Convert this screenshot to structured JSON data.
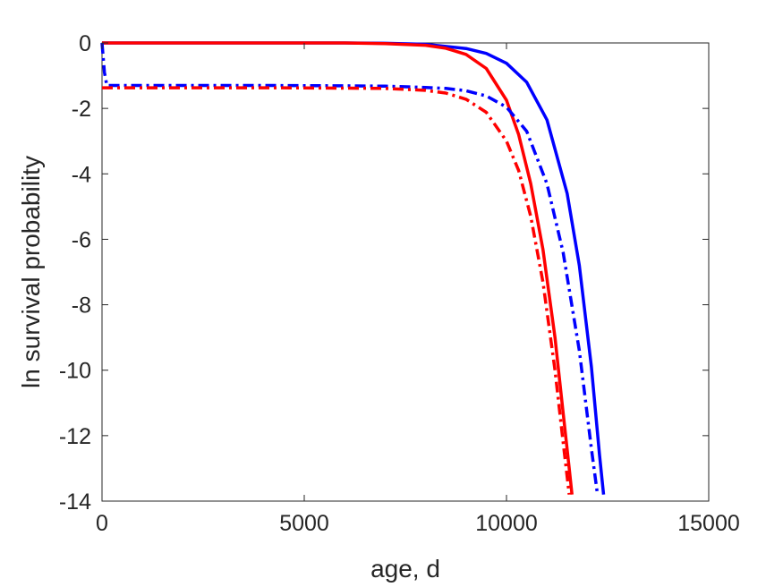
{
  "chart_data": {
    "type": "line",
    "title": "",
    "xlabel": "age, d",
    "ylabel": "ln survival probability",
    "xlim": [
      0,
      15000
    ],
    "ylim": [
      -14,
      0
    ],
    "xticks": [
      0,
      5000,
      10000,
      15000
    ],
    "xtick_labels": [
      "0",
      "5000",
      "10000",
      "15000"
    ],
    "yticks": [
      0,
      -2,
      -4,
      -6,
      -8,
      -10,
      -12,
      -14
    ],
    "ytick_labels": [
      "0",
      "-2",
      "-4",
      "-6",
      "-8",
      "-10",
      "-12",
      "-14"
    ],
    "grid": false,
    "legend": "none",
    "series": [
      {
        "color": "#0000ff",
        "style": "solid",
        "x": [
          0,
          2000,
          4000,
          6000,
          7000,
          8000,
          9000,
          9500,
          10000,
          10500,
          11000,
          11500,
          11800,
          12100,
          12300,
          12400
        ],
        "y": [
          0,
          0,
          0,
          0,
          -0.01,
          -0.04,
          -0.17,
          -0.32,
          -0.62,
          -1.2,
          -2.35,
          -4.6,
          -6.8,
          -9.9,
          -12.6,
          -13.8
        ]
      },
      {
        "color": "#ff0000",
        "style": "solid",
        "x": [
          0,
          2000,
          4000,
          6000,
          7000,
          8000,
          8500,
          9000,
          9500,
          10000,
          10300,
          10600,
          10900,
          11200,
          11400,
          11550,
          11620
        ],
        "y": [
          0,
          0,
          0,
          0,
          -0.02,
          -0.07,
          -0.16,
          -0.35,
          -0.78,
          -1.75,
          -2.8,
          -4.3,
          -6.3,
          -9.0,
          -11.3,
          -13.0,
          -13.8
        ]
      },
      {
        "color": "#0000ff",
        "style": "dashdot",
        "x": [
          0,
          20,
          60,
          120,
          500,
          2000,
          4000,
          6000,
          7000,
          8000,
          8500,
          9000,
          9500,
          10000,
          10500,
          11000,
          11400,
          11800,
          12100,
          12250
        ],
        "y": [
          0,
          -0.3,
          -0.9,
          -1.3,
          -1.3,
          -1.3,
          -1.3,
          -1.31,
          -1.32,
          -1.36,
          -1.39,
          -1.46,
          -1.62,
          -1.96,
          -2.7,
          -4.3,
          -6.4,
          -9.4,
          -12.4,
          -13.8
        ]
      },
      {
        "color": "#ff0000",
        "style": "dashdot",
        "x": [
          0,
          500,
          2000,
          4000,
          6000,
          7000,
          8000,
          8500,
          9000,
          9500,
          10000,
          10300,
          10600,
          10900,
          11200,
          11400,
          11550
        ],
        "y": [
          -1.37,
          -1.37,
          -1.37,
          -1.37,
          -1.38,
          -1.39,
          -1.45,
          -1.53,
          -1.72,
          -2.12,
          -3.0,
          -3.9,
          -5.3,
          -7.3,
          -10.0,
          -12.2,
          -13.8
        ]
      }
    ]
  }
}
